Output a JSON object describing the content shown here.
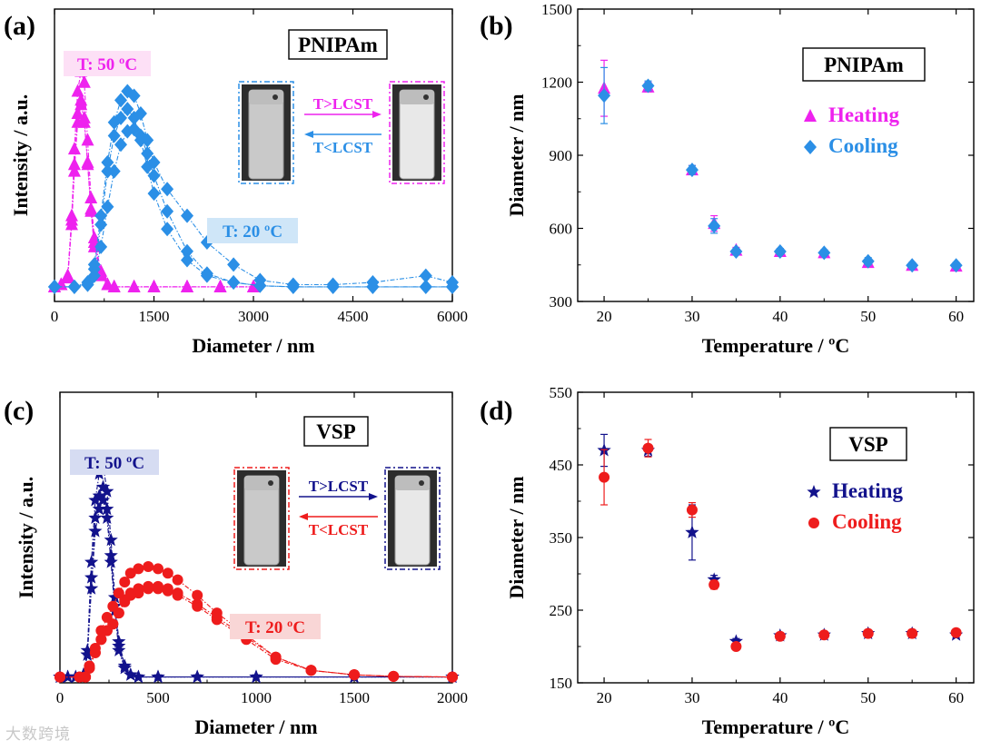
{
  "watermark": "大数跨境",
  "colors": {
    "magenta": "#ee22ee",
    "blue": "#2b8fe6",
    "navy": "#12128c",
    "red": "#ee1c1c",
    "magenta_fill": "#fde0f6",
    "blue_fill": "#cfe6f8",
    "navy_fill": "#d6dcf2",
    "red_fill": "#f9d6d6"
  },
  "chart_data": [
    {
      "panel": "(a)",
      "type": "line",
      "box_label": "PNIPAm",
      "xlabel": "Diameter / nm",
      "ylabel": "Intensity / a.u.",
      "xlim": [
        0,
        6000
      ],
      "xticks": [
        0,
        1500,
        3000,
        4500,
        6000
      ],
      "xticklabels": [
        "0",
        "1500",
        "3000",
        "4500",
        "6000"
      ],
      "ylim": [
        0,
        1
      ],
      "annotations": {
        "hot": "T: 50 ºC",
        "cold": "T: 20 ºC",
        "up": "T>LCST",
        "down": "T<LCST"
      },
      "series": [
        {
          "group": "50C",
          "x": [
            0,
            100,
            200,
            260,
            300,
            350,
            400,
            450,
            500,
            550,
            600,
            700,
            800,
            900,
            1200,
            1500,
            2000,
            2500,
            3000
          ],
          "y": [
            0,
            0.01,
            0.05,
            0.3,
            0.55,
            0.78,
            0.84,
            0.76,
            0.55,
            0.34,
            0.18,
            0.05,
            0.01,
            0,
            0,
            0,
            0,
            0,
            0
          ]
        },
        {
          "group": "50C",
          "x": [
            0,
            100,
            200,
            260,
            300,
            350,
            400,
            450,
            500,
            550,
            600,
            700,
            800,
            900,
            1200,
            1500,
            2000,
            2500,
            3000
          ],
          "y": [
            0,
            0.01,
            0.05,
            0.32,
            0.62,
            0.88,
            0.97,
            0.92,
            0.66,
            0.4,
            0.22,
            0.07,
            0.01,
            0,
            0,
            0,
            0,
            0,
            0
          ]
        },
        {
          "group": "50C",
          "x": [
            0,
            100,
            200,
            260,
            300,
            350,
            400,
            450,
            500,
            550,
            600,
            700,
            800,
            900,
            1200,
            1500,
            2000,
            2500,
            3000
          ],
          "y": [
            0,
            0.01,
            0.04,
            0.28,
            0.52,
            0.74,
            0.82,
            0.74,
            0.56,
            0.35,
            0.2,
            0.06,
            0.01,
            0,
            0,
            0,
            0,
            0,
            0
          ]
        },
        {
          "group": "20C",
          "x": [
            0,
            300,
            500,
            600,
            700,
            800,
            900,
            1000,
            1100,
            1200,
            1300,
            1400,
            1500,
            1700,
            2000,
            2300,
            2700,
            3100,
            3600,
            4200,
            4800,
            5600,
            6000
          ],
          "y": [
            0,
            0,
            0.01,
            0.05,
            0.18,
            0.36,
            0.52,
            0.64,
            0.7,
            0.71,
            0.68,
            0.6,
            0.5,
            0.34,
            0.16,
            0.06,
            0.02,
            0.005,
            0,
            0,
            0,
            0,
            0
          ]
        },
        {
          "group": "20C",
          "x": [
            0,
            300,
            500,
            600,
            700,
            800,
            900,
            1000,
            1100,
            1200,
            1300,
            1400,
            1500,
            1700,
            2000,
            2300,
            2700,
            3100,
            3600,
            4200,
            4800,
            5600,
            6000
          ],
          "y": [
            0,
            0,
            0.01,
            0.08,
            0.28,
            0.52,
            0.68,
            0.76,
            0.8,
            0.76,
            0.66,
            0.54,
            0.42,
            0.26,
            0.12,
            0.05,
            0.02,
            0.005,
            0,
            0,
            0,
            0,
            0
          ]
        },
        {
          "group": "20C",
          "x": [
            0,
            300,
            500,
            600,
            700,
            800,
            900,
            1000,
            1100,
            1200,
            1300,
            1400,
            1500,
            1700,
            2000,
            2300,
            2700,
            3100,
            3600,
            4200,
            4800,
            5600,
            6000
          ],
          "y": [
            0,
            0,
            0.02,
            0.1,
            0.32,
            0.56,
            0.74,
            0.84,
            0.88,
            0.86,
            0.78,
            0.66,
            0.56,
            0.44,
            0.32,
            0.2,
            0.1,
            0.03,
            0.01,
            0.01,
            0.02,
            0.05,
            0.02
          ]
        }
      ]
    },
    {
      "panel": "(b)",
      "type": "scatter",
      "box_label": "PNIPAm",
      "xlabel": "Temperature / ºC",
      "ylabel": "Diameter / nm",
      "xlim": [
        17,
        62
      ],
      "xticks": [
        20,
        30,
        40,
        50,
        60
      ],
      "xticklabels": [
        "20",
        "30",
        "40",
        "50",
        "60"
      ],
      "ylim": [
        300,
        1500
      ],
      "yticks": [
        300,
        600,
        900,
        1200,
        1500
      ],
      "yticklabels": [
        "300",
        "600",
        "900",
        "1200",
        "1500"
      ],
      "series": [
        {
          "name": "Heating",
          "marker": "triangle",
          "x": [
            20,
            25,
            30,
            32.5,
            35,
            40,
            45,
            50,
            55,
            60
          ],
          "y": [
            1175,
            1180,
            840,
            620,
            510,
            505,
            500,
            460,
            448,
            445
          ],
          "err": [
            115,
            20,
            18,
            32,
            12,
            12,
            12,
            15,
            12,
            12
          ]
        },
        {
          "name": "Cooling",
          "marker": "diamond",
          "x": [
            20,
            25,
            30,
            32.5,
            35,
            40,
            45,
            50,
            55,
            60
          ],
          "y": [
            1145,
            1185,
            840,
            610,
            505,
            505,
            500,
            465,
            448,
            448
          ],
          "err": [
            115,
            20,
            18,
            30,
            12,
            12,
            12,
            15,
            12,
            12
          ]
        }
      ]
    },
    {
      "panel": "(c)",
      "type": "line",
      "box_label": "VSP",
      "xlabel": "Diameter / nm",
      "ylabel": "Intensity / a.u.",
      "xlim": [
        0,
        2000
      ],
      "xticks": [
        0,
        500,
        1000,
        1500,
        2000
      ],
      "xticklabels": [
        "0",
        "500",
        "1000",
        "1500",
        "2000"
      ],
      "ylim": [
        0,
        1
      ],
      "annotations": {
        "hot": "T: 50 ºC",
        "cold": "T: 20 ºC",
        "up": "T>LCST",
        "down": "T<LCST"
      },
      "series": [
        {
          "group": "50C",
          "x": [
            0,
            40,
            80,
            120,
            140,
            160,
            180,
            200,
            220,
            240,
            260,
            280,
            300,
            330,
            360,
            400,
            500,
            700,
            1000,
            1500,
            2000
          ],
          "y": [
            0,
            0,
            0,
            0.01,
            0.1,
            0.45,
            0.72,
            0.82,
            0.86,
            0.76,
            0.55,
            0.32,
            0.14,
            0.04,
            0.01,
            0,
            0,
            0,
            0,
            0,
            0
          ]
        },
        {
          "group": "50C",
          "x": [
            0,
            40,
            80,
            120,
            140,
            160,
            180,
            200,
            220,
            240,
            260,
            280,
            300,
            330,
            360,
            400,
            500,
            700,
            1000,
            1500,
            2000
          ],
          "y": [
            0,
            0,
            0,
            0.01,
            0.12,
            0.52,
            0.8,
            0.92,
            0.96,
            0.84,
            0.62,
            0.36,
            0.16,
            0.05,
            0.01,
            0,
            0,
            0,
            0,
            0,
            0
          ]
        },
        {
          "group": "50C",
          "x": [
            0,
            40,
            80,
            120,
            140,
            160,
            180,
            200,
            220,
            240,
            260,
            280,
            300,
            330,
            360,
            400,
            500,
            700,
            1000,
            1500,
            2000
          ],
          "y": [
            0,
            0,
            0,
            0.01,
            0.1,
            0.4,
            0.66,
            0.76,
            0.8,
            0.72,
            0.52,
            0.3,
            0.12,
            0.04,
            0.01,
            0,
            0,
            0,
            0,
            0,
            0
          ]
        },
        {
          "group": "20C",
          "x": [
            0,
            100,
            130,
            150,
            180,
            210,
            240,
            270,
            300,
            330,
            360,
            400,
            450,
            500,
            550,
            600,
            700,
            800,
            950,
            1100,
            1280,
            1500,
            1700,
            2000
          ],
          "y": [
            0,
            0,
            0,
            0.04,
            0.11,
            0.17,
            0.21,
            0.24,
            0.29,
            0.34,
            0.37,
            0.38,
            0.4,
            0.4,
            0.39,
            0.37,
            0.32,
            0.26,
            0.17,
            0.08,
            0.03,
            0.01,
            0.003,
            0
          ]
        },
        {
          "group": "20C",
          "x": [
            0,
            100,
            130,
            150,
            180,
            210,
            240,
            270,
            300,
            330,
            360,
            400,
            450,
            500,
            550,
            600,
            700,
            800,
            950,
            1100,
            1280,
            1500,
            1700,
            2000
          ],
          "y": [
            0,
            0,
            0,
            0.04,
            0.11,
            0.17,
            0.21,
            0.24,
            0.29,
            0.35,
            0.38,
            0.4,
            0.41,
            0.41,
            0.4,
            0.38,
            0.33,
            0.27,
            0.18,
            0.09,
            0.03,
            0.01,
            0.003,
            0
          ]
        },
        {
          "group": "20C",
          "x": [
            0,
            100,
            130,
            150,
            180,
            210,
            240,
            270,
            300,
            330,
            360,
            400,
            450,
            500,
            550,
            600,
            700,
            800,
            950,
            1100,
            1280,
            1500,
            1700,
            2000
          ],
          "y": [
            0,
            0,
            0,
            0.05,
            0.13,
            0.21,
            0.27,
            0.32,
            0.38,
            0.43,
            0.47,
            0.49,
            0.5,
            0.49,
            0.47,
            0.44,
            0.37,
            0.29,
            0.19,
            0.09,
            0.03,
            0.01,
            0.003,
            0
          ]
        }
      ]
    },
    {
      "panel": "(d)",
      "type": "scatter",
      "box_label": "VSP",
      "xlabel": "Temperature / ºC",
      "ylabel": "Diameter / nm",
      "xlim": [
        17,
        62
      ],
      "xticks": [
        20,
        30,
        40,
        50,
        60
      ],
      "xticklabels": [
        "20",
        "30",
        "40",
        "50",
        "60"
      ],
      "ylim": [
        150,
        550
      ],
      "yticks": [
        150,
        250,
        350,
        450,
        550
      ],
      "yticklabels": [
        "150",
        "250",
        "350",
        "450",
        "550"
      ],
      "series": [
        {
          "name": "Heating",
          "marker": "star",
          "x": [
            20,
            25,
            30,
            32.5,
            35,
            40,
            45,
            50,
            55,
            60
          ],
          "y": [
            470,
            470,
            357,
            292,
            207,
            215,
            216,
            218,
            218,
            216
          ],
          "err": [
            22,
            8,
            38,
            6,
            4,
            4,
            4,
            4,
            4,
            4
          ]
        },
        {
          "name": "Cooling",
          "marker": "circle",
          "x": [
            20,
            25,
            30,
            32.5,
            35,
            40,
            45,
            50,
            55,
            60
          ],
          "y": [
            433,
            473,
            388,
            285,
            200,
            214,
            216,
            218,
            218,
            219
          ],
          "err": [
            38,
            12,
            10,
            6,
            4,
            4,
            4,
            4,
            4,
            4
          ]
        }
      ]
    }
  ]
}
